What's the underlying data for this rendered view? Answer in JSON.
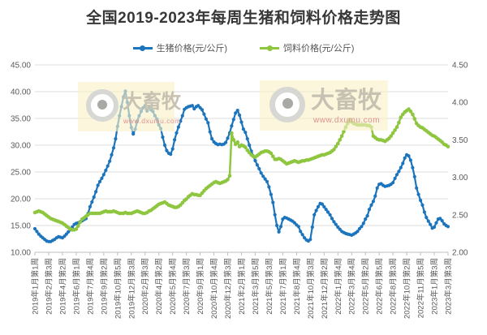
{
  "title": "全国2019-2023年每周生猪和饲料价格走势图",
  "legend": [
    {
      "label": "生猪价格(元/公斤)",
      "color": "#1c75bc"
    },
    {
      "label": "饲料价格(元/公斤)",
      "color": "#8fc640"
    }
  ],
  "watermark": {
    "brand": "大畜牧",
    "url": "www.dxumu.com"
  },
  "colors": {
    "pig_line": "#1c75bc",
    "feed_line": "#8fc640",
    "gridline": "#dcdcdc",
    "axis_line": "#bfbfbf",
    "axis_text": "#595959",
    "title_text": "#373737",
    "watermark_bg": "#f9f1c6"
  },
  "chart_data": {
    "type": "line",
    "title": "全国2019-2023年每周生猪和饲料价格走势图",
    "grid": true,
    "legend_position": "top",
    "x_axis": {
      "unit": "week index (weekly data, one point per week)",
      "total_weeks": 211,
      "ticks_every_n_weeks": 7,
      "tick_labels": [
        "2019年1月第1周",
        "2019年2月第3周",
        "2019年4月第2周",
        "2019年6月第1周",
        "2019年7月第4周",
        "2019年9月第2周",
        "2019年10月第5周",
        "2019年12月第3周",
        "2020年2月第3周",
        "2020年4月第2周",
        "2020年5月第4周",
        "2020年7月第3周",
        "2020年9月第1周",
        "2020年10月第4周",
        "2020年12月第3周",
        "2021年2月第1周",
        "2021年3月第5周",
        "2021年5月第3周",
        "2021年7月第1周",
        "2021年8月第4周",
        "2021年10月第3周",
        "2021年12月第2周",
        "2022年1月第4周",
        "2022年3月第4周",
        "2022年5月第2周",
        "2022年6月第5周",
        "2022年8月第3周",
        "2022年10月第2周",
        "2022年11月第5周",
        "2023年1月第3周",
        "2023年3月第3周"
      ]
    },
    "y_axis_left": {
      "series": "生猪价格(元/公斤)",
      "min": 10,
      "max": 45,
      "tick_labels": [
        "45.00",
        "40.00",
        "35.00",
        "30.00",
        "25.00",
        "20.00",
        "15.00",
        "10.00"
      ]
    },
    "y_axis_right": {
      "series": "饲料价格(元/公斤)",
      "min": 2.0,
      "max": 4.5,
      "tick_labels": [
        "4.50",
        "4.00",
        "3.50",
        "3.00",
        "2.50",
        "2.00"
      ]
    },
    "series": [
      {
        "name": "生猪价格(元/公斤)",
        "axis": "left",
        "color": "#1c75bc",
        "values": [
          14.4,
          13.9,
          13.4,
          13.0,
          12.7,
          12.4,
          12.1,
          12.0,
          12.0,
          12.2,
          12.4,
          12.7,
          12.9,
          12.8,
          12.7,
          13.0,
          13.4,
          13.8,
          14.2,
          14.7,
          15.2,
          15.4,
          15.5,
          15.7,
          15.9,
          16.1,
          16.3,
          17.2,
          18.5,
          19.4,
          20.3,
          21.3,
          22.5,
          23.2,
          23.8,
          24.5,
          25.3,
          26.1,
          27.0,
          28.2,
          29.5,
          31.2,
          33.5,
          35.5,
          37.2,
          39.0,
          40.1,
          38.0,
          35.5,
          33.3,
          32.1,
          33.0,
          34.5,
          35.5,
          36.3,
          37.0,
          37.4,
          36.4,
          37.0,
          36.6,
          36.3,
          35.5,
          34.9,
          33.8,
          33.1,
          31.5,
          30.0,
          29.0,
          28.5,
          28.3,
          29.3,
          31.0,
          32.3,
          33.4,
          34.5,
          35.5,
          36.7,
          37.0,
          37.2,
          37.3,
          37.4,
          36.8,
          37.2,
          37.4,
          37.0,
          36.6,
          35.8,
          34.9,
          34.2,
          32.5,
          31.2,
          30.6,
          30.3,
          30.1,
          30.2,
          30.1,
          30.2,
          30.5,
          31.3,
          32.3,
          33.6,
          34.8,
          36.0,
          36.5,
          35.6,
          34.3,
          33.0,
          32.4,
          31.2,
          30.0,
          28.9,
          28.0,
          27.1,
          26.3,
          25.6,
          24.8,
          24.2,
          23.7,
          23.2,
          22.2,
          20.8,
          19.3,
          17.0,
          15.0,
          13.8,
          14.8,
          16.2,
          16.5,
          16.4,
          16.2,
          16.0,
          15.8,
          15.5,
          15.1,
          14.8,
          13.9,
          13.3,
          12.7,
          12.3,
          12.1,
          12.4,
          14.7,
          17.0,
          17.8,
          18.5,
          19.1,
          19.0,
          18.5,
          18.0,
          17.5,
          17.0,
          16.3,
          15.7,
          15.2,
          14.7,
          14.3,
          13.9,
          13.7,
          13.5,
          13.4,
          13.3,
          13.2,
          13.4,
          13.6,
          13.9,
          14.4,
          14.8,
          15.4,
          16.2,
          16.8,
          18.0,
          18.8,
          19.5,
          20.5,
          22.0,
          22.7,
          22.8,
          22.5,
          22.3,
          22.4,
          22.5,
          22.7,
          23.0,
          23.8,
          24.5,
          25.1,
          25.8,
          26.6,
          27.6,
          28.2,
          28.0,
          27.2,
          25.8,
          24.1,
          22.0,
          20.8,
          19.7,
          18.8,
          17.5,
          16.5,
          15.8,
          15.2,
          14.5,
          14.7,
          15.5,
          16.2,
          16.3,
          15.9,
          15.3,
          15.0,
          14.8
        ]
      },
      {
        "name": "饲料价格(元/公斤)",
        "axis": "right",
        "color": "#8fc640",
        "values": [
          2.53,
          2.54,
          2.55,
          2.54,
          2.53,
          2.51,
          2.49,
          2.47,
          2.45,
          2.44,
          2.43,
          2.42,
          2.41,
          2.4,
          2.39,
          2.37,
          2.35,
          2.33,
          2.31,
          2.3,
          2.3,
          2.31,
          2.35,
          2.4,
          2.44,
          2.46,
          2.48,
          2.5,
          2.52,
          2.52,
          2.52,
          2.52,
          2.52,
          2.52,
          2.53,
          2.54,
          2.55,
          2.54,
          2.54,
          2.54,
          2.55,
          2.54,
          2.53,
          2.52,
          2.52,
          2.52,
          2.53,
          2.52,
          2.52,
          2.52,
          2.53,
          2.54,
          2.55,
          2.54,
          2.53,
          2.52,
          2.52,
          2.53,
          2.55,
          2.56,
          2.58,
          2.6,
          2.62,
          2.64,
          2.65,
          2.66,
          2.67,
          2.65,
          2.63,
          2.62,
          2.61,
          2.6,
          2.6,
          2.61,
          2.63,
          2.66,
          2.69,
          2.71,
          2.74,
          2.76,
          2.78,
          2.77,
          2.77,
          2.76,
          2.76,
          2.79,
          2.82,
          2.85,
          2.87,
          2.89,
          2.91,
          2.93,
          2.94,
          2.93,
          2.92,
          2.93,
          2.94,
          2.95,
          2.97,
          3.02,
          3.59,
          3.5,
          3.44,
          3.47,
          3.41,
          3.43,
          3.42,
          3.4,
          3.36,
          3.33,
          3.3,
          3.28,
          3.27,
          3.29,
          3.31,
          3.33,
          3.34,
          3.35,
          3.35,
          3.34,
          3.32,
          3.28,
          3.24,
          3.24,
          3.25,
          3.24,
          3.22,
          3.2,
          3.18,
          3.19,
          3.2,
          3.21,
          3.22,
          3.21,
          3.2,
          3.21,
          3.22,
          3.22,
          3.23,
          3.23,
          3.24,
          3.25,
          3.26,
          3.27,
          3.28,
          3.29,
          3.3,
          3.3,
          3.31,
          3.32,
          3.33,
          3.35,
          3.37,
          3.41,
          3.45,
          3.5,
          3.55,
          3.61,
          3.67,
          3.72,
          3.77,
          3.74,
          3.72,
          3.71,
          3.7,
          3.7,
          3.7,
          3.7,
          3.7,
          3.69,
          3.69,
          3.67,
          3.55,
          3.53,
          3.51,
          3.5,
          3.5,
          3.49,
          3.48,
          3.5,
          3.52,
          3.55,
          3.59,
          3.63,
          3.67,
          3.73,
          3.8,
          3.84,
          3.87,
          3.89,
          3.91,
          3.88,
          3.84,
          3.78,
          3.72,
          3.69,
          3.67,
          3.66,
          3.64,
          3.62,
          3.6,
          3.58,
          3.56,
          3.55,
          3.53,
          3.51,
          3.49,
          3.47,
          3.44,
          3.43,
          3.41
        ]
      }
    ]
  }
}
